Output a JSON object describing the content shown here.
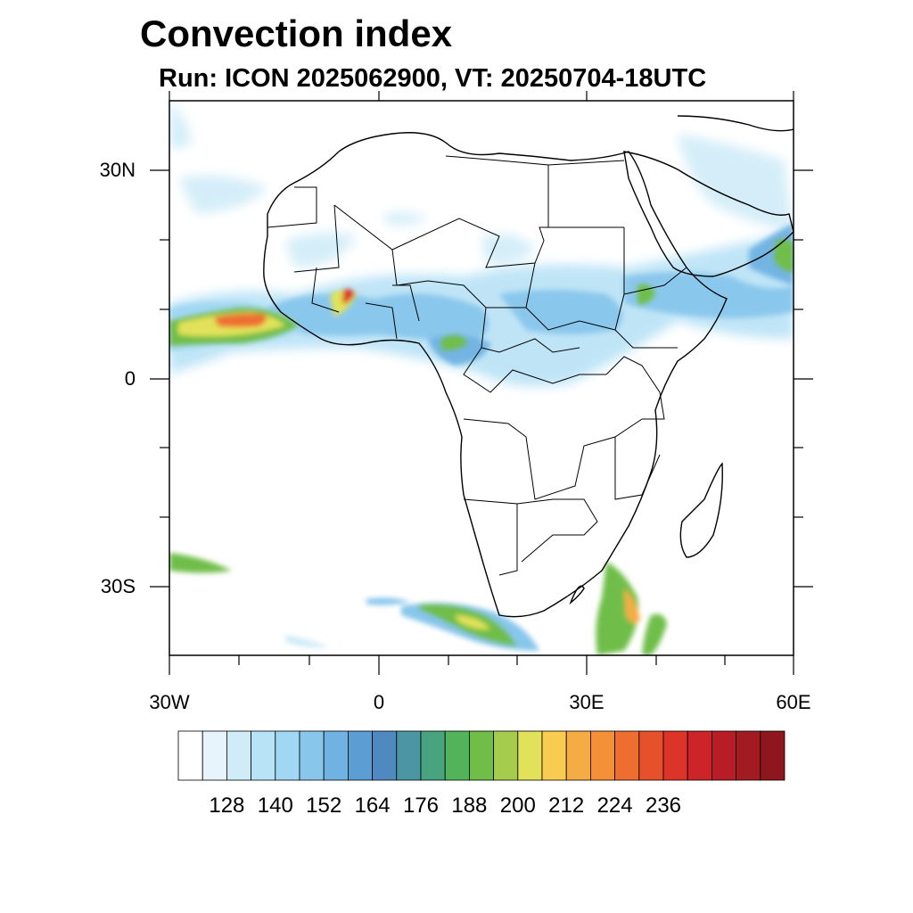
{
  "title": "Convection index",
  "subtitle": "Run: ICON 2025062900,  VT: 20250704-18UTC",
  "axes": {
    "lat_labels": [
      "30N",
      "0",
      "30S"
    ],
    "lon_labels": [
      "30W",
      "0",
      "30E",
      "60E"
    ]
  },
  "colorbar": {
    "colors": [
      "#ffffff",
      "#e8f4fb",
      "#d0ecf8",
      "#b8e2f6",
      "#a0d7f3",
      "#88c6ec",
      "#70b2e2",
      "#5c9dd3",
      "#5088c0",
      "#4c96a4",
      "#48a47e",
      "#52b45a",
      "#70be48",
      "#a6cc4e",
      "#e2e25a",
      "#f8cc50",
      "#f6ac44",
      "#f49038",
      "#ee6e30",
      "#e6502a",
      "#dc3428",
      "#cc2428",
      "#b81c26",
      "#a21a22",
      "#8e161e"
    ],
    "labels": [
      "128",
      "140",
      "152",
      "164",
      "176",
      "188",
      "200",
      "212",
      "224",
      "236"
    ]
  }
}
